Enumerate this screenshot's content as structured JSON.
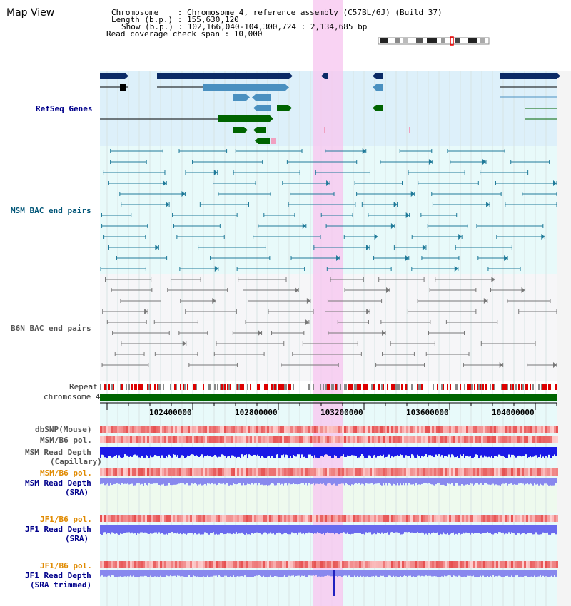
{
  "header": {
    "title": "Map View",
    "lines": [
      "Chromosome    : Chromosome 4, reference assembly (C57BL/6J) (Build 37)",
      "Length (b.p.) : 155,630,120",
      "Show (b.p.) : 102,166,040-104,300,724 : 2,134,685 bp",
      "Read coverage check span : 10,000"
    ]
  },
  "tracks": {
    "refseq": "RefSeq Genes",
    "msm_bac": "MSM BAC end pairs",
    "b6n_bac": "B6N BAC end pairs",
    "repeat": "Repeat",
    "chrom": "chromosome 4",
    "dbsnp": "dbSNP(Mouse)",
    "msm_b6_pol": "MSM/B6 pol.",
    "msm_depth_cap_1": "MSM Read Depth",
    "msm_depth_cap_2": "(Capillary)",
    "msm_b6_pol2": "MSM/B6 pol.",
    "msm_depth_sra_1": "MSM Read Depth",
    "msm_depth_sra_2": "(SRA)",
    "jf1_b6_pol": "JF1/B6 pol.",
    "jf1_depth_sra_1": "JF1 Read Depth",
    "jf1_depth_sra_2": "(SRA)",
    "jf1_b6_pol2": "JF1/B6 pol.",
    "jf1_depth_trim_1": "JF1 Read Depth",
    "jf1_depth_trim_2": "(SRA trimmed)"
  },
  "axis": {
    "ticks": [
      "102400000",
      "102800000",
      "103200000",
      "103600000",
      "104000000"
    ]
  },
  "colors": {
    "highlight": "#f8c8f0",
    "refseq_bg": "#ddf0fa",
    "bac_bg": "#e8fafa",
    "gene_dark": "#0a2a66",
    "gene_mid": "#4a90c0",
    "gene_green": "#006400",
    "chrom_green": "#006400",
    "depth_blue": "#0a1ae6",
    "depth_light": "#8888ee"
  }
}
